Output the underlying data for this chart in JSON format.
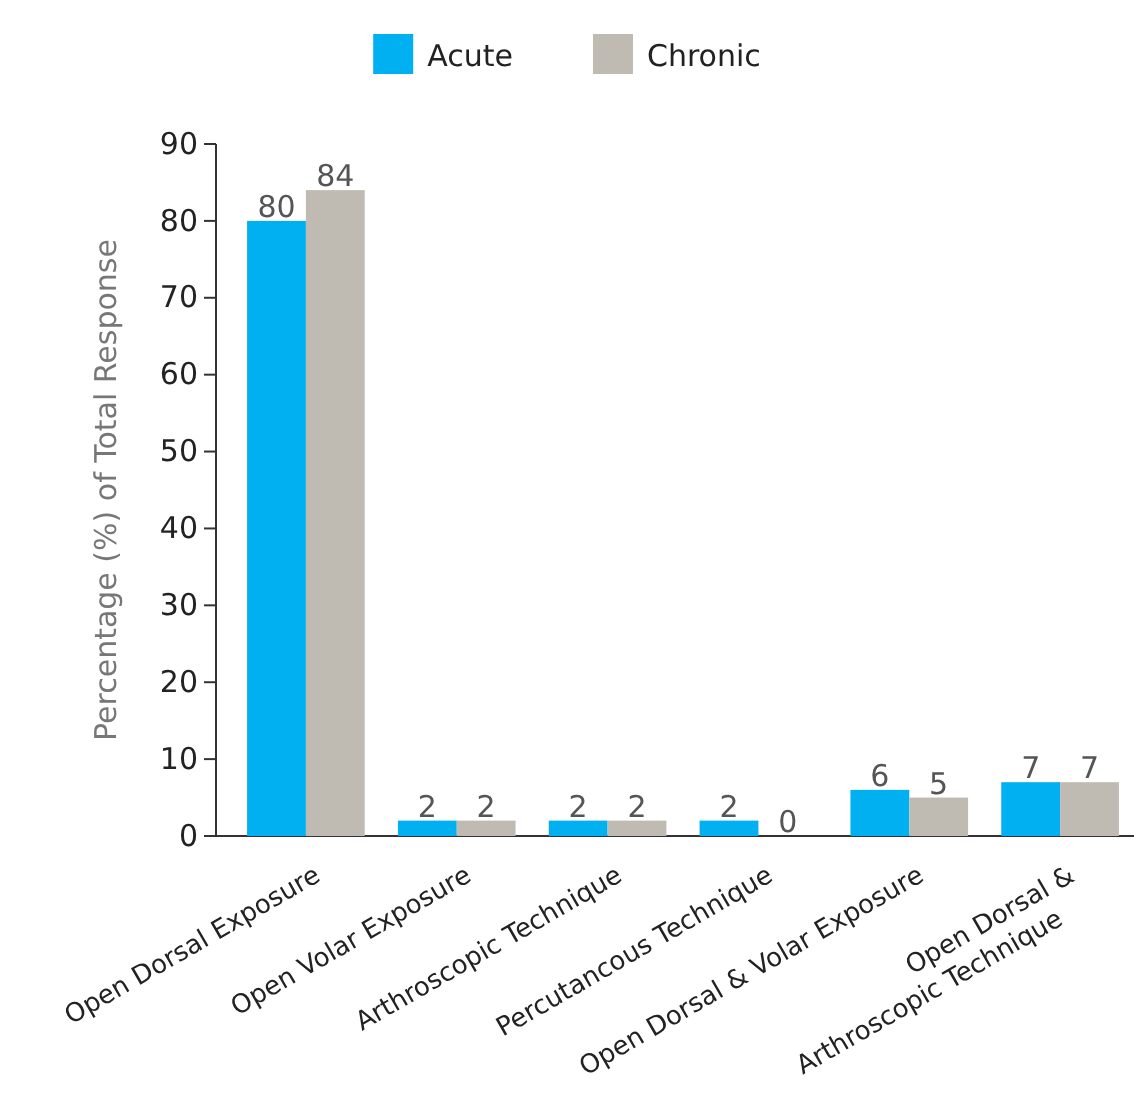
{
  "chart_data": {
    "type": "bar",
    "ylabel": "Percentage (%) of Total Response",
    "categories": [
      "Open Dorsal Exposure",
      "Open Volar Exposure",
      "Arthroscopic Technique",
      "Percutancous Technique",
      "Open Dorsal & Volar Exposure",
      "Open Dorsal &\nArthroscopic Technique"
    ],
    "series": [
      {
        "name": "Acute",
        "color": "#00b0f0",
        "values": [
          80,
          2,
          2,
          2,
          6,
          7
        ]
      },
      {
        "name": "Chronic",
        "color": "#bfbbb3",
        "values": [
          84,
          2,
          2,
          0,
          5,
          7
        ]
      }
    ],
    "ylim": [
      0,
      90
    ],
    "yticks": [
      0,
      10,
      20,
      30,
      40,
      50,
      60,
      70,
      80,
      90
    ],
    "grid": false,
    "legend": "top",
    "data_labels": true
  }
}
